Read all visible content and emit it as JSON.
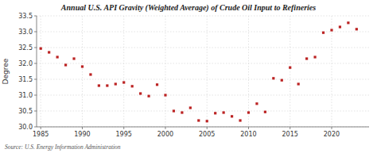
{
  "chart_data": {
    "type": "scatter",
    "title": "Annual U.S. API Gravity (Weighted Average) of Crude Oil Input to Refineries",
    "ylabel": "Degree",
    "annotations": [
      "Source: U.S. Energy Information Administration"
    ],
    "x": [
      1985,
      1986,
      1987,
      1988,
      1989,
      1990,
      1991,
      1992,
      1993,
      1994,
      1995,
      1996,
      1997,
      1998,
      1999,
      2000,
      2001,
      2002,
      2003,
      2004,
      2005,
      2006,
      2007,
      2008,
      2009,
      2010,
      2011,
      2012,
      2013,
      2014,
      2015,
      2016,
      2017,
      2018,
      2019,
      2020,
      2021,
      2022,
      2023
    ],
    "values": [
      32.47,
      32.35,
      32.2,
      31.95,
      32.15,
      31.9,
      31.65,
      31.3,
      31.3,
      31.35,
      31.4,
      31.28,
      31.05,
      30.97,
      31.33,
      31.0,
      30.5,
      30.45,
      30.6,
      30.2,
      30.18,
      30.43,
      30.45,
      30.33,
      30.2,
      30.45,
      30.73,
      30.47,
      31.53,
      31.47,
      31.87,
      31.35,
      32.15,
      32.2,
      32.97,
      33.05,
      33.15,
      33.28,
      33.08
    ],
    "color": "#bb2222",
    "marker": "square",
    "xlim": [
      1984.5,
      2024.5
    ],
    "ylim": [
      30.0,
      33.5
    ],
    "xticks": [
      1985,
      1990,
      1995,
      2000,
      2005,
      2010,
      2015,
      2020
    ],
    "yticks": [
      {
        "value": 30.0,
        "label": "30.0"
      },
      {
        "value": 30.5,
        "label": "30.5"
      },
      {
        "value": 31.0,
        "label": "31.0"
      },
      {
        "value": 31.5,
        "label": "31.5"
      },
      {
        "value": 32.0,
        "label": "32.0"
      },
      {
        "value": 32.5,
        "label": "32.5"
      },
      {
        "value": 33.0,
        "label": "33.0"
      },
      {
        "value": 33.5,
        "label": "33.5"
      }
    ],
    "grid": true
  }
}
